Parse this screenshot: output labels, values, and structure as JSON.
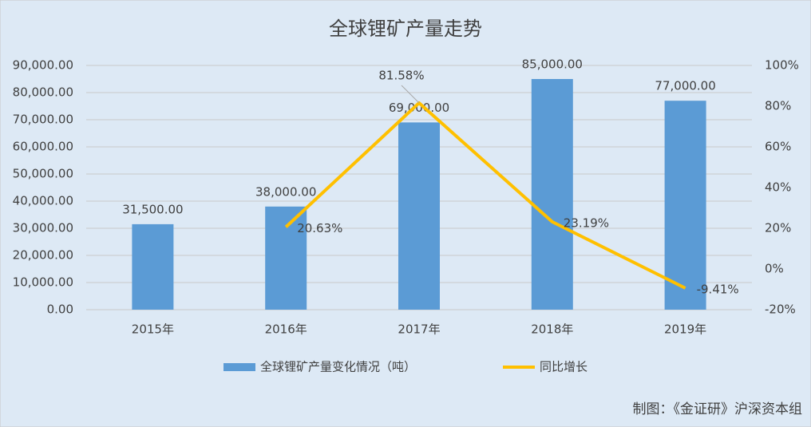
{
  "chart_data": {
    "type": "bar",
    "title": "全球锂矿产量走势",
    "categories": [
      "2015年",
      "2016年",
      "2017年",
      "2018年",
      "2019年"
    ],
    "series": [
      {
        "name": "全球锂矿产量变化情况（吨）",
        "color": "#5b9bd5",
        "type": "bar",
        "values": [
          31500,
          38000,
          69000,
          85000,
          77000
        ],
        "value_labels": [
          "31,500.00",
          "38,000.00",
          "69,000.00",
          "85,000.00",
          "77,000.00"
        ]
      },
      {
        "name": "同比增长",
        "color": "#ffc000",
        "type": "line",
        "axis": "y2",
        "values": [
          null,
          20.63,
          81.58,
          23.19,
          -9.41
        ],
        "value_labels": [
          null,
          "20.63%",
          "81.58%",
          "23.19%",
          "-9.41%"
        ]
      }
    ],
    "ylim": [
      0,
      90000
    ],
    "yticks": [
      {
        "value": 0,
        "label": "0.00"
      },
      {
        "value": 10000,
        "label": "10,000.00"
      },
      {
        "value": 20000,
        "label": "20,000.00"
      },
      {
        "value": 30000,
        "label": "30,000.00"
      },
      {
        "value": 40000,
        "label": "40,000.00"
      },
      {
        "value": 50000,
        "label": "50,000.00"
      },
      {
        "value": 60000,
        "label": "60,000.00"
      },
      {
        "value": 70000,
        "label": "70,000.00"
      },
      {
        "value": 80000,
        "label": "80,000.00"
      },
      {
        "value": 90000,
        "label": "90,000.00"
      }
    ],
    "y2lim": [
      -20,
      100
    ],
    "y2ticks": [
      {
        "value": -20,
        "label": "-20%"
      },
      {
        "value": 0,
        "label": "0%"
      },
      {
        "value": 20,
        "label": "20%"
      },
      {
        "value": 40,
        "label": "40%"
      },
      {
        "value": 60,
        "label": "60%"
      },
      {
        "value": 80,
        "label": "80%"
      },
      {
        "value": 100,
        "label": "100%"
      }
    ],
    "grid": true,
    "legend": "bottom",
    "annotation": "制图：《金证研》沪深资本组"
  }
}
